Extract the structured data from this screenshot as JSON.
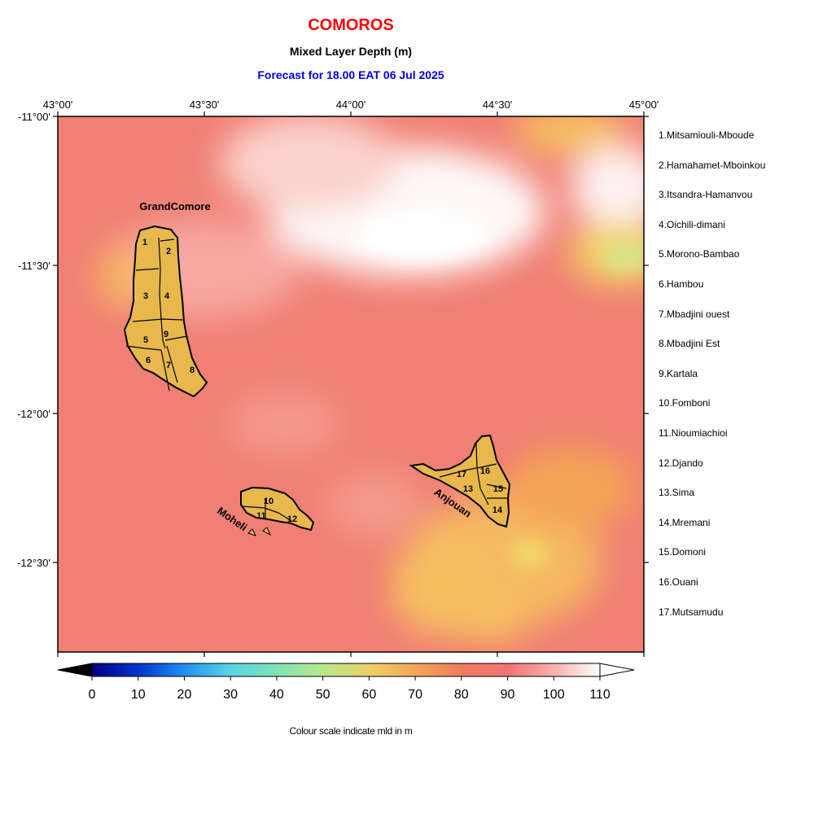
{
  "header": {
    "title": "COMOROS",
    "subtitle": "Mixed Layer Depth (m)",
    "forecast": "Forecast for  18.00 EAT 06 Jul 2025"
  },
  "axes": {
    "lon_ticks": [
      "43°00'",
      "43°30'",
      "44°00'",
      "44°30'",
      "45°00'"
    ],
    "lat_ticks": [
      "-11°00'",
      "-11°30'",
      "-12°00'",
      "-12°30'"
    ]
  },
  "islands": {
    "grand_comore": "GrandComore",
    "moheli": "Moheli",
    "anjouan": "Anjouan"
  },
  "region_numbers": [
    "1",
    "2",
    "3",
    "4",
    "5",
    "6",
    "7",
    "8",
    "9",
    "10",
    "11",
    "12",
    "13",
    "14",
    "15",
    "16",
    "17"
  ],
  "regions": [
    "1.Mitsamiouli-Mboude",
    "2.Hamahamet-Mboinkou",
    "3.Itsandra-Hamanvou",
    "4.Oichili-dimani",
    "5.Morono-Bambao",
    "6.Hambou",
    "7.Mbadjini ouest",
    "8.Mbadjini Est",
    "9.Kartala",
    "10.Fomboni",
    "11.Nioumiachioi",
    "12.Djando",
    "13.Sima",
    "14.Mremani",
    "15.Domoni",
    "16.Ouani",
    "17.Mutsamudu"
  ],
  "colorbar": {
    "ticks": [
      "0",
      "10",
      "20",
      "30",
      "40",
      "50",
      "60",
      "70",
      "80",
      "90",
      "100",
      "110"
    ],
    "caption": "Colour scale indicate mld in m",
    "colors": [
      "#000080",
      "#0033cc",
      "#1f8ff0",
      "#58d2e6",
      "#9fe8a0",
      "#e3de70",
      "#f4b050",
      "#f07a60",
      "#f26a64",
      "#f8a0a0",
      "#fde0e0",
      "#ffffff"
    ]
  },
  "field_colors": {
    "base": "#f08074",
    "white": "#ffffff",
    "yellow": "#f6c060",
    "land": "#e8b84c"
  }
}
